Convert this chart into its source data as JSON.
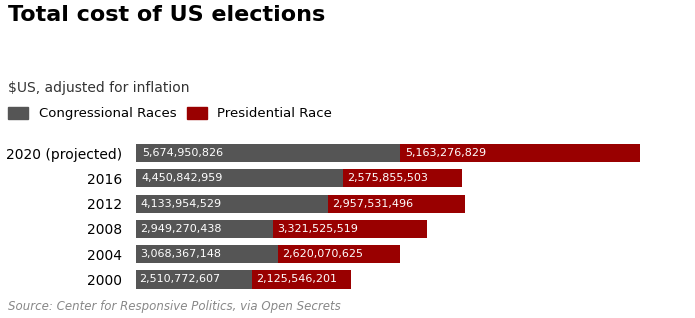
{
  "title": "Total cost of US elections",
  "subtitle": "$US, adjusted for inflation",
  "source": "Source: Center for Responsive Politics, via Open Secrets",
  "years": [
    "2020 (projected)",
    "2016",
    "2012",
    "2008",
    "2004",
    "2000"
  ],
  "congressional": [
    5674950826,
    4450842959,
    4133954529,
    2949270438,
    3068367148,
    2510772607
  ],
  "presidential": [
    5163276829,
    2575855503,
    2957531496,
    3321525519,
    2620070625,
    2125546201
  ],
  "congressional_labels": [
    "5,674,950,826",
    "4,450,842,959",
    "4,133,954,529",
    "2,949,270,438",
    "3,068,367,148",
    "2,510,772,607"
  ],
  "presidential_labels": [
    "5,163,276,829",
    "2,575,855,503",
    "2,957,531,496",
    "3,321,525,519",
    "2,620,070,625",
    "2,125,546,201"
  ],
  "congressional_color": "#555555",
  "presidential_color": "#990000",
  "background_color": "#ffffff",
  "bar_height": 0.72,
  "title_fontsize": 16,
  "subtitle_fontsize": 10,
  "label_fontsize": 8,
  "legend_fontsize": 9.5,
  "source_fontsize": 8.5,
  "year_fontsize": 10
}
